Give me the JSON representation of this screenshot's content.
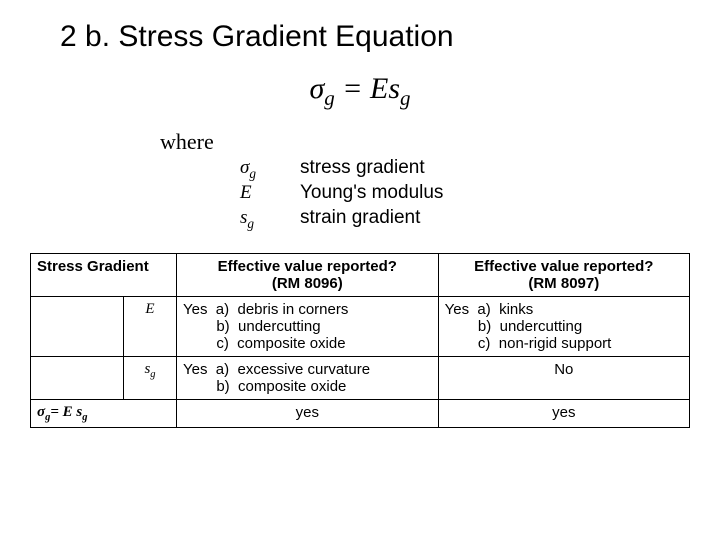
{
  "title": "2 b.  Stress Gradient Equation",
  "equation": {
    "lhs_base": "σ",
    "lhs_sub": "g",
    "eq": " = ",
    "rhs_a": "Es",
    "rhs_sub": "g"
  },
  "where_label": "where",
  "defs": [
    {
      "sym_base": "σ",
      "sym_sub": "g",
      "txt": "stress gradient"
    },
    {
      "sym_base": "E",
      "sym_sub": "",
      "txt": "Young's modulus"
    },
    {
      "sym_base": "s",
      "sym_sub": "g",
      "txt": "strain gradient"
    }
  ],
  "table": {
    "header_rowlabel": "Stress Gradient",
    "header_col1": "Effective value reported?\n(RM 8096)",
    "header_col2": "Effective value reported?\n(RM 8097)",
    "rows": [
      {
        "sym_base": "E",
        "sym_sub": "",
        "c1": "Yes  a)  debris in corners\n        b)  undercutting\n        c)  composite oxide",
        "c2": "Yes  a)  kinks\n        b)  undercutting\n        c)  non-rigid support"
      },
      {
        "sym_base": "s",
        "sym_sub": "g",
        "c1": "Yes  a)  excessive curvature\n        b)  composite oxide",
        "c2": "No"
      },
      {
        "full_label_html": "σ<sub>g</sub>= E s<sub>g</sub>",
        "c1": "yes",
        "c2": "yes"
      }
    ]
  },
  "colors": {
    "text": "#000000",
    "background": "#ffffff",
    "border": "#000000"
  }
}
